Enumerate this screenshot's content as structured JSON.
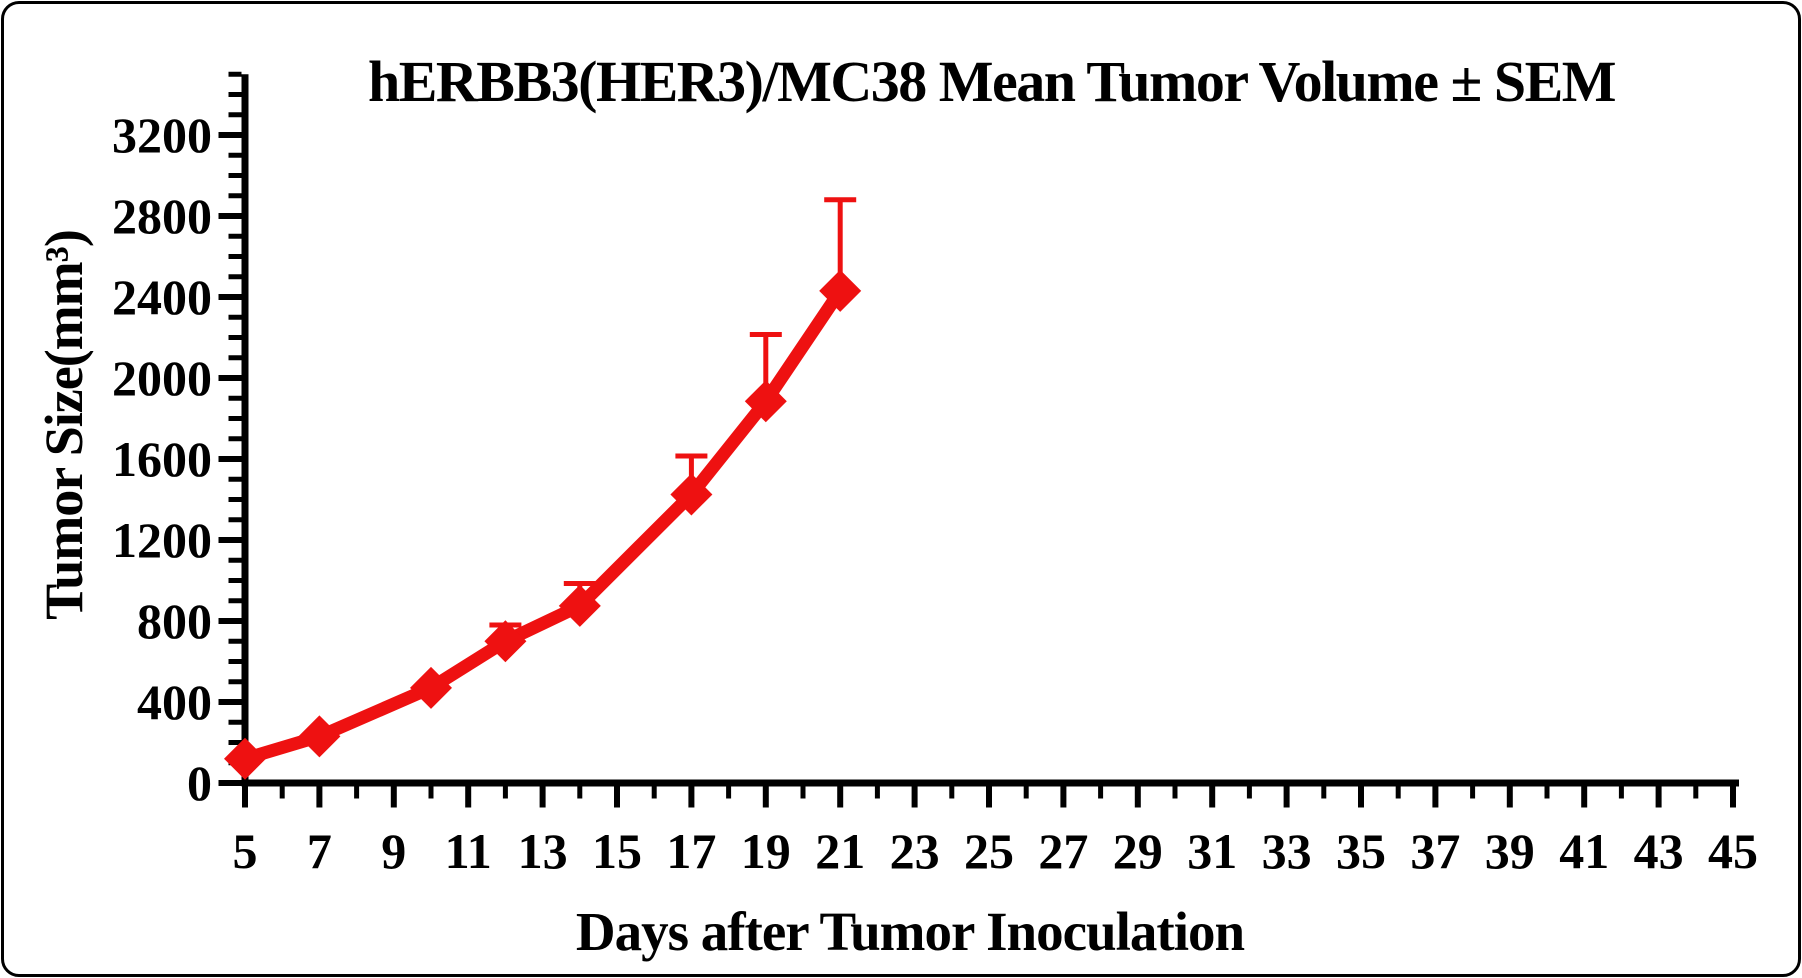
{
  "frame": {
    "border_color": "#000000",
    "background": "#ffffff"
  },
  "chart_data": {
    "type": "line",
    "title": "hERBB3(HER3)/MC38 Mean Tumor Volume ± SEM",
    "xlabel": "Days after Tumor Inoculation",
    "ylabel": "Tumor Size(mm³)",
    "grid": false,
    "legend": "none",
    "axis_color": "#000000",
    "series": [
      {
        "name": "hERBB3(HER3)/MC38",
        "color": "#ee1111",
        "marker": "diamond",
        "x": [
          5,
          7,
          10,
          12,
          14,
          17,
          19,
          21
        ],
        "mean": [
          120,
          230,
          470,
          700,
          875,
          1425,
          1885,
          2430
        ],
        "sem_upper": [
          0,
          0,
          0,
          80,
          110,
          190,
          330,
          450
        ]
      }
    ],
    "x_axis": {
      "min": 5,
      "max": 45,
      "minor_tick_step": 1,
      "major_tick_step": 2,
      "tick_labels": [
        5,
        7,
        9,
        11,
        13,
        15,
        17,
        19,
        21,
        23,
        25,
        27,
        29,
        31,
        33,
        35,
        37,
        39,
        41,
        43,
        45
      ]
    },
    "y_axis": {
      "min": 0,
      "max": 3500,
      "minor_tick_step": 100,
      "major_tick_step": 400,
      "tick_labels": [
        0,
        400,
        800,
        1200,
        1600,
        2000,
        2400,
        2800,
        3200
      ]
    }
  }
}
